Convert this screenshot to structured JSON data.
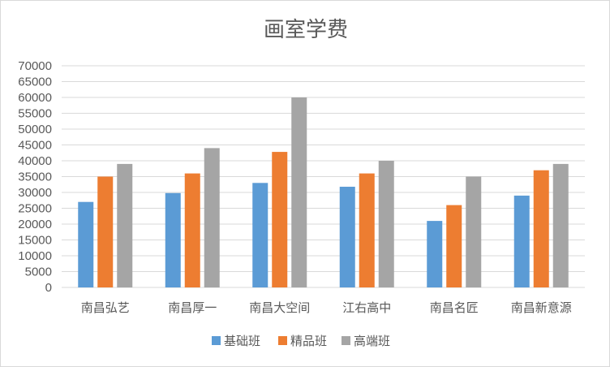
{
  "chart_data": {
    "type": "bar",
    "title": "画室学费",
    "categories": [
      "南昌弘艺",
      "南昌厚一",
      "南昌大空间",
      "江右高中",
      "南昌名匠",
      "南昌新意源"
    ],
    "series": [
      {
        "name": "基础班",
        "color": "#5b9bd5",
        "values": [
          27000,
          29800,
          33000,
          31800,
          21000,
          29000
        ]
      },
      {
        "name": "精品班",
        "color": "#ed7d31",
        "values": [
          35000,
          36000,
          42800,
          36000,
          26000,
          37000
        ]
      },
      {
        "name": "高端班",
        "color": "#a5a5a5",
        "values": [
          39000,
          44000,
          60000,
          40000,
          35000,
          39000
        ]
      }
    ],
    "ylim": [
      0,
      70000
    ],
    "y_ticks": [
      "0",
      "5000",
      "10000",
      "15000",
      "20000",
      "25000",
      "30000",
      "35000",
      "40000",
      "45000",
      "50000",
      "55000",
      "60000",
      "65000",
      "70000"
    ],
    "grid": true,
    "legend_position": "bottom",
    "gridline_color": "#d9d9d9"
  }
}
